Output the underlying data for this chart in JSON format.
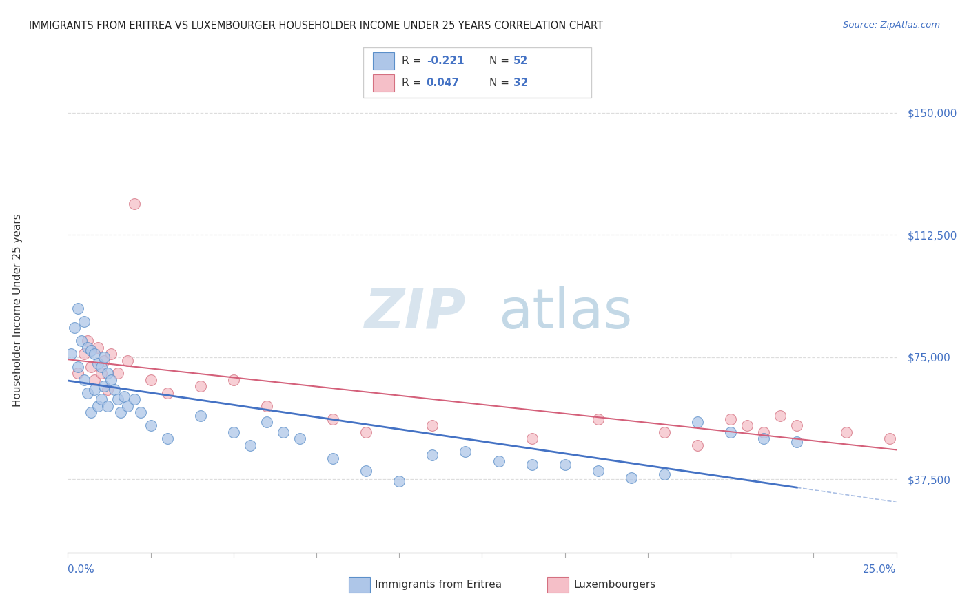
{
  "title": "IMMIGRANTS FROM ERITREA VS LUXEMBOURGER HOUSEHOLDER INCOME UNDER 25 YEARS CORRELATION CHART",
  "source": "Source: ZipAtlas.com",
  "ylabel": "Householder Income Under 25 years",
  "xmin": 0.0,
  "xmax": 0.25,
  "ymin": 15000,
  "ymax": 162000,
  "ytick_vals": [
    37500,
    75000,
    112500,
    150000
  ],
  "ytick_labels": [
    "$37,500",
    "$75,000",
    "$112,500",
    "$150,000"
  ],
  "legend1_text": "R = -0.221  N = 52",
  "legend2_text": "R = 0.047  N = 32",
  "blue_color": "#aec6e8",
  "blue_edge_color": "#5b8fc9",
  "blue_line_color": "#4472c4",
  "pink_color": "#f5bfc8",
  "pink_edge_color": "#d47080",
  "pink_line_color": "#d4607a",
  "background_color": "#ffffff",
  "grid_color": "#dddddd",
  "blue_x": [
    0.001,
    0.002,
    0.003,
    0.003,
    0.004,
    0.005,
    0.005,
    0.006,
    0.006,
    0.007,
    0.007,
    0.008,
    0.008,
    0.009,
    0.009,
    0.01,
    0.01,
    0.011,
    0.011,
    0.012,
    0.012,
    0.013,
    0.014,
    0.015,
    0.016,
    0.017,
    0.018,
    0.02,
    0.022,
    0.025,
    0.03,
    0.04,
    0.05,
    0.055,
    0.06,
    0.065,
    0.07,
    0.08,
    0.09,
    0.1,
    0.11,
    0.12,
    0.13,
    0.14,
    0.15,
    0.16,
    0.17,
    0.18,
    0.19,
    0.2,
    0.21,
    0.22
  ],
  "blue_y": [
    76000,
    84000,
    90000,
    72000,
    80000,
    86000,
    68000,
    78000,
    64000,
    77000,
    58000,
    76000,
    65000,
    73000,
    60000,
    72000,
    62000,
    75000,
    66000,
    70000,
    60000,
    68000,
    65000,
    62000,
    58000,
    63000,
    60000,
    62000,
    58000,
    54000,
    50000,
    57000,
    52000,
    48000,
    55000,
    52000,
    50000,
    44000,
    40000,
    37000,
    45000,
    46000,
    43000,
    42000,
    42000,
    40000,
    38000,
    39000,
    55000,
    52000,
    50000,
    49000
  ],
  "pink_x": [
    0.003,
    0.005,
    0.006,
    0.007,
    0.008,
    0.009,
    0.01,
    0.011,
    0.012,
    0.013,
    0.015,
    0.018,
    0.02,
    0.025,
    0.03,
    0.04,
    0.05,
    0.06,
    0.08,
    0.09,
    0.11,
    0.14,
    0.16,
    0.18,
    0.19,
    0.2,
    0.205,
    0.21,
    0.215,
    0.22,
    0.235,
    0.248
  ],
  "pink_y": [
    70000,
    76000,
    80000,
    72000,
    68000,
    78000,
    70000,
    74000,
    65000,
    76000,
    70000,
    74000,
    122000,
    68000,
    64000,
    66000,
    68000,
    60000,
    56000,
    52000,
    54000,
    50000,
    56000,
    52000,
    48000,
    56000,
    54000,
    52000,
    57000,
    54000,
    52000,
    50000
  ]
}
